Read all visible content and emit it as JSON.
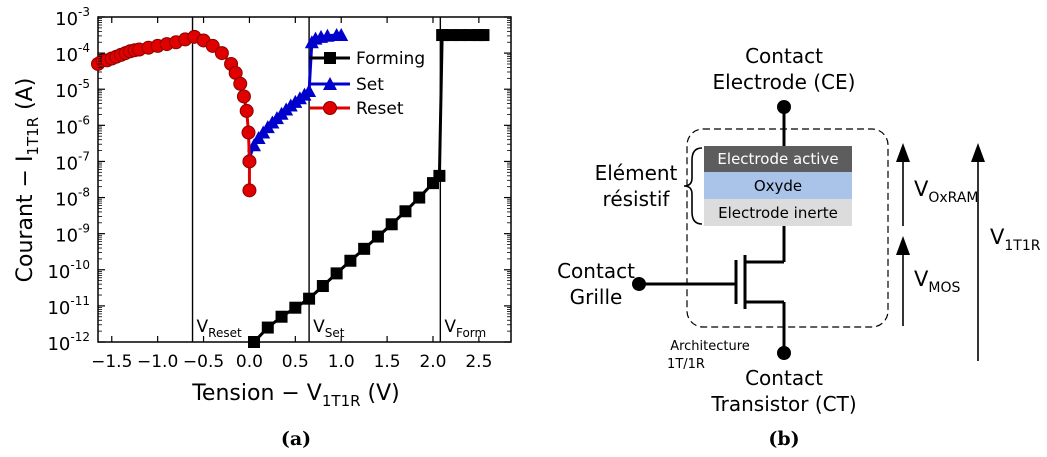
{
  "chart_data": {
    "type": "scatter",
    "ylabel_main": "Courant − I",
    "ylabel_sub": "1T1R",
    "ylabel_unit": " (A)",
    "xlabel_main": "Tension − V",
    "xlabel_sub": "1T1R",
    "xlabel_unit": " (V)",
    "xlim": [
      -1.65,
      2.85
    ],
    "ylim_exp": [
      -12,
      -3
    ],
    "y_log_scale": true,
    "x_ticks": [
      {
        "v": -1.5,
        "label": "−1.5"
      },
      {
        "v": -1.0,
        "label": "−1.0"
      },
      {
        "v": -0.5,
        "label": "−0.5"
      },
      {
        "v": 0.0,
        "label": "0.0"
      },
      {
        "v": 0.5,
        "label": "0.5"
      },
      {
        "v": 1.0,
        "label": "1.0"
      },
      {
        "v": 1.5,
        "label": "1.5"
      },
      {
        "v": 2.0,
        "label": "2.0"
      },
      {
        "v": 2.5,
        "label": "2.5"
      }
    ],
    "y_ticks": [
      {
        "e": -12,
        "label": "-12"
      },
      {
        "e": -11,
        "label": "-11"
      },
      {
        "e": -10,
        "label": "-10"
      },
      {
        "e": -9,
        "label": "-9"
      },
      {
        "e": -8,
        "label": "-8"
      },
      {
        "e": -7,
        "label": "-7"
      },
      {
        "e": -6,
        "label": "-6"
      },
      {
        "e": -5,
        "label": "-5"
      },
      {
        "e": -4,
        "label": "-4"
      },
      {
        "e": -3,
        "label": "-3"
      }
    ],
    "legend": {
      "position": "top-right"
    },
    "vlines": [
      {
        "x": -0.62,
        "label": "V",
        "sub": "Reset"
      },
      {
        "x": 0.65,
        "label": "V",
        "sub": "Set"
      },
      {
        "x": 2.08,
        "label": "V",
        "sub": "Form"
      }
    ],
    "series": [
      {
        "name": "Forming",
        "color": "#000000",
        "marker": "square",
        "points": [
          [
            0.05,
            -12.0
          ],
          [
            0.2,
            -11.6
          ],
          [
            0.35,
            -11.3
          ],
          [
            0.5,
            -11.05
          ],
          [
            0.65,
            -10.8
          ],
          [
            0.8,
            -10.45
          ],
          [
            0.95,
            -10.1
          ],
          [
            1.1,
            -9.75
          ],
          [
            1.25,
            -9.42
          ],
          [
            1.4,
            -9.08
          ],
          [
            1.55,
            -8.74
          ],
          [
            1.7,
            -8.38
          ],
          [
            1.85,
            -8.0
          ],
          [
            2.0,
            -7.6
          ],
          [
            2.07,
            -7.4
          ],
          [
            2.1,
            -3.5
          ],
          [
            2.2,
            -3.5
          ],
          [
            2.3,
            -3.5
          ],
          [
            2.4,
            -3.5
          ],
          [
            2.5,
            -3.5
          ],
          [
            2.55,
            -3.5
          ]
        ]
      },
      {
        "name": "Set",
        "color": "#0000cc",
        "marker": "triangle",
        "points": [
          [
            0.0,
            -6.9
          ],
          [
            0.05,
            -6.55
          ],
          [
            0.1,
            -6.35
          ],
          [
            0.15,
            -6.2
          ],
          [
            0.2,
            -6.05
          ],
          [
            0.25,
            -5.92
          ],
          [
            0.3,
            -5.8
          ],
          [
            0.35,
            -5.68
          ],
          [
            0.4,
            -5.56
          ],
          [
            0.45,
            -5.45
          ],
          [
            0.5,
            -5.35
          ],
          [
            0.55,
            -5.25
          ],
          [
            0.6,
            -5.15
          ],
          [
            0.65,
            -5.05
          ],
          [
            0.68,
            -3.7
          ],
          [
            0.72,
            -3.6
          ],
          [
            0.78,
            -3.55
          ],
          [
            0.85,
            -3.52
          ],
          [
            0.95,
            -3.5
          ],
          [
            1.0,
            -3.5
          ]
        ]
      },
      {
        "name": "Reset",
        "color": "#e00000",
        "marker": "circle",
        "points": [
          [
            -1.65,
            -4.3
          ],
          [
            -1.6,
            -4.2
          ],
          [
            -1.55,
            -4.2
          ],
          [
            -1.5,
            -4.15
          ],
          [
            -1.45,
            -4.1
          ],
          [
            -1.4,
            -4.05
          ],
          [
            -1.35,
            -4.0
          ],
          [
            -1.3,
            -3.95
          ],
          [
            -1.25,
            -3.92
          ],
          [
            -1.2,
            -3.9
          ],
          [
            -1.1,
            -3.85
          ],
          [
            -1.0,
            -3.8
          ],
          [
            -0.9,
            -3.75
          ],
          [
            -0.8,
            -3.7
          ],
          [
            -0.7,
            -3.62
          ],
          [
            -0.6,
            -3.55
          ],
          [
            -0.5,
            -3.65
          ],
          [
            -0.4,
            -3.8
          ],
          [
            -0.3,
            -4.0
          ],
          [
            -0.2,
            -4.3
          ],
          [
            -0.15,
            -4.55
          ],
          [
            -0.1,
            -4.85
          ],
          [
            -0.06,
            -5.2
          ],
          [
            -0.03,
            -5.6
          ],
          [
            -0.01,
            -6.2
          ],
          [
            0.0,
            -7.0
          ],
          [
            0.0,
            -7.8
          ]
        ]
      }
    ]
  },
  "panel_labels": {
    "a": "(a)",
    "b": "(b)"
  },
  "diagram": {
    "top_contact_line1": "Contact",
    "top_contact_line2": "Electrode (CE)",
    "bottom_contact_line1": "Contact",
    "bottom_contact_line2": "Transistor (CT)",
    "gate_contact_line1": "Contact",
    "gate_contact_line2": "Grille",
    "element_line1": "Elément",
    "element_line2": "résistif",
    "layer_top": "Electrode active",
    "layer_mid": "Oxyde",
    "layer_bottom": "Electrode inerte",
    "arch_line1": "Architecture",
    "arch_line2": "1T/1R",
    "v_oxram": "V",
    "v_oxram_sub": "OxRAM",
    "v_mos": "V",
    "v_mos_sub": "MOS",
    "v_total": "V",
    "v_total_sub": "1T1R",
    "colors": {
      "layer_top": "#5d5d5d",
      "layer_mid": "#a9c4e8",
      "layer_bottom": "#dcdcdc"
    }
  }
}
